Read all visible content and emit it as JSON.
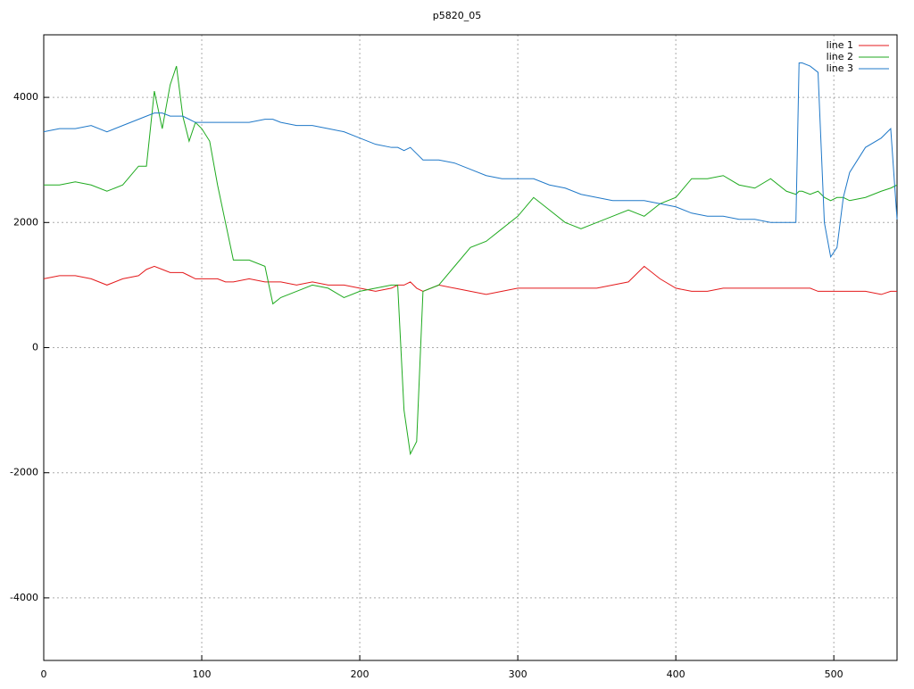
{
  "chart_data": {
    "type": "line",
    "title": "p5820_05",
    "x": [
      0,
      10,
      20,
      30,
      40,
      50,
      60,
      65,
      70,
      75,
      80,
      84,
      88,
      92,
      96,
      100,
      105,
      110,
      115,
      120,
      130,
      140,
      145,
      150,
      160,
      170,
      180,
      190,
      200,
      210,
      220,
      224,
      228,
      232,
      236,
      240,
      250,
      260,
      270,
      280,
      290,
      300,
      310,
      320,
      330,
      340,
      350,
      360,
      370,
      380,
      390,
      400,
      410,
      420,
      430,
      440,
      450,
      460,
      470,
      476,
      478,
      480,
      485,
      490,
      494,
      498,
      502,
      506,
      510,
      520,
      530,
      536,
      540
    ],
    "series": [
      {
        "name": "line 1",
        "color": "#e41a1c",
        "values": [
          1100,
          1150,
          1150,
          1100,
          1000,
          1100,
          1150,
          1250,
          1300,
          1250,
          1200,
          1200,
          1200,
          1150,
          1100,
          1100,
          1100,
          1100,
          1050,
          1050,
          1100,
          1050,
          1050,
          1050,
          1000,
          1050,
          1000,
          1000,
          950,
          900,
          950,
          1000,
          1000,
          1050,
          950,
          900,
          1000,
          950,
          900,
          850,
          900,
          950,
          950,
          950,
          950,
          950,
          950,
          1000,
          1050,
          1300,
          1100,
          950,
          900,
          900,
          950,
          950,
          950,
          950,
          950,
          950,
          950,
          950,
          950,
          900,
          900,
          900,
          900,
          900,
          900,
          900,
          850,
          900,
          900
        ]
      },
      {
        "name": "line 2",
        "color": "#1faa1f",
        "values": [
          2600,
          2600,
          2650,
          2600,
          2500,
          2600,
          2900,
          2900,
          4100,
          3500,
          4200,
          4500,
          3700,
          3300,
          3600,
          3500,
          3300,
          2600,
          2000,
          1400,
          1400,
          1300,
          700,
          800,
          900,
          1000,
          950,
          800,
          900,
          950,
          1000,
          1000,
          -1000,
          -1700,
          -1500,
          900,
          1000,
          1300,
          1600,
          1700,
          1900,
          2100,
          2400,
          2200,
          2000,
          1900,
          2000,
          2100,
          2200,
          2100,
          2300,
          2400,
          2700,
          2700,
          2750,
          2600,
          2550,
          2700,
          2500,
          2450,
          2500,
          2500,
          2450,
          2500,
          2400,
          2350,
          2400,
          2400,
          2350,
          2400,
          2500,
          2550,
          2600
        ]
      },
      {
        "name": "line 3",
        "color": "#1f78c8",
        "values": [
          3450,
          3500,
          3500,
          3550,
          3450,
          3550,
          3650,
          3700,
          3750,
          3750,
          3700,
          3700,
          3700,
          3650,
          3600,
          3600,
          3600,
          3600,
          3600,
          3600,
          3600,
          3650,
          3650,
          3600,
          3550,
          3550,
          3500,
          3450,
          3350,
          3250,
          3200,
          3200,
          3150,
          3200,
          3100,
          3000,
          3000,
          2950,
          2850,
          2750,
          2700,
          2700,
          2700,
          2600,
          2550,
          2450,
          2400,
          2350,
          2350,
          2350,
          2300,
          2250,
          2150,
          2100,
          2100,
          2050,
          2050,
          2000,
          2000,
          2000,
          4550,
          4550,
          4500,
          4400,
          2000,
          1450,
          1600,
          2400,
          2800,
          3200,
          3350,
          3500,
          2050
        ]
      }
    ],
    "xlim": [
      0,
      540
    ],
    "xticks": [
      0,
      100,
      200,
      300,
      400,
      500
    ],
    "ylim": [
      -5000,
      5000
    ],
    "yticks": [
      -4000,
      -2000,
      0,
      2000,
      4000
    ],
    "grid": true,
    "legend": "top-right"
  }
}
